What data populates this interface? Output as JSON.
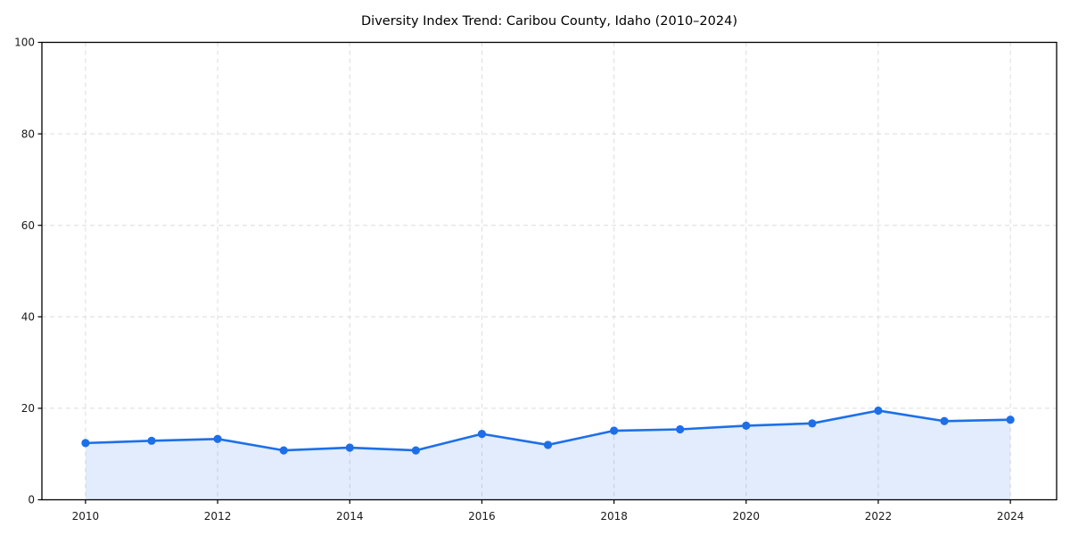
{
  "title": "Diversity Index Trend: Caribou County, Idaho (2010–2024)",
  "colors": {
    "line": "#1d6fe8",
    "marker": "#1d6fe8",
    "area_fill": "rgba(29, 111, 232, 0.13)",
    "grid": "#dcdcdc",
    "spine": "#000000",
    "tick": "#000000",
    "text": "#1a1a1a",
    "plot_background": "#ffffff",
    "figure_background": "#ffffff"
  },
  "chart_data": {
    "type": "line",
    "title": "Diversity Index Trend: Caribou County, Idaho (2010–2024)",
    "series": [
      {
        "name": "Diversity Index",
        "x": [
          2010,
          2011,
          2012,
          2013,
          2014,
          2015,
          2016,
          2017,
          2018,
          2019,
          2020,
          2021,
          2022,
          2023,
          2024
        ],
        "values": [
          12.4,
          12.9,
          13.3,
          10.8,
          11.4,
          10.8,
          14.4,
          12.0,
          15.1,
          15.4,
          16.2,
          16.7,
          19.5,
          17.2,
          17.5
        ]
      }
    ],
    "xlabel": "",
    "ylabel": "",
    "xlim": [
      2009.34,
      2024.7
    ],
    "ylim": [
      0,
      100
    ],
    "xticks": [
      2010,
      2012,
      2014,
      2016,
      2018,
      2020,
      2022,
      2024
    ],
    "yticks": [
      0,
      20,
      40,
      60,
      80,
      100
    ],
    "grid": true,
    "grid_style": "dashed",
    "marker": "circle",
    "area_fill_under_line": true,
    "legend": "none"
  }
}
